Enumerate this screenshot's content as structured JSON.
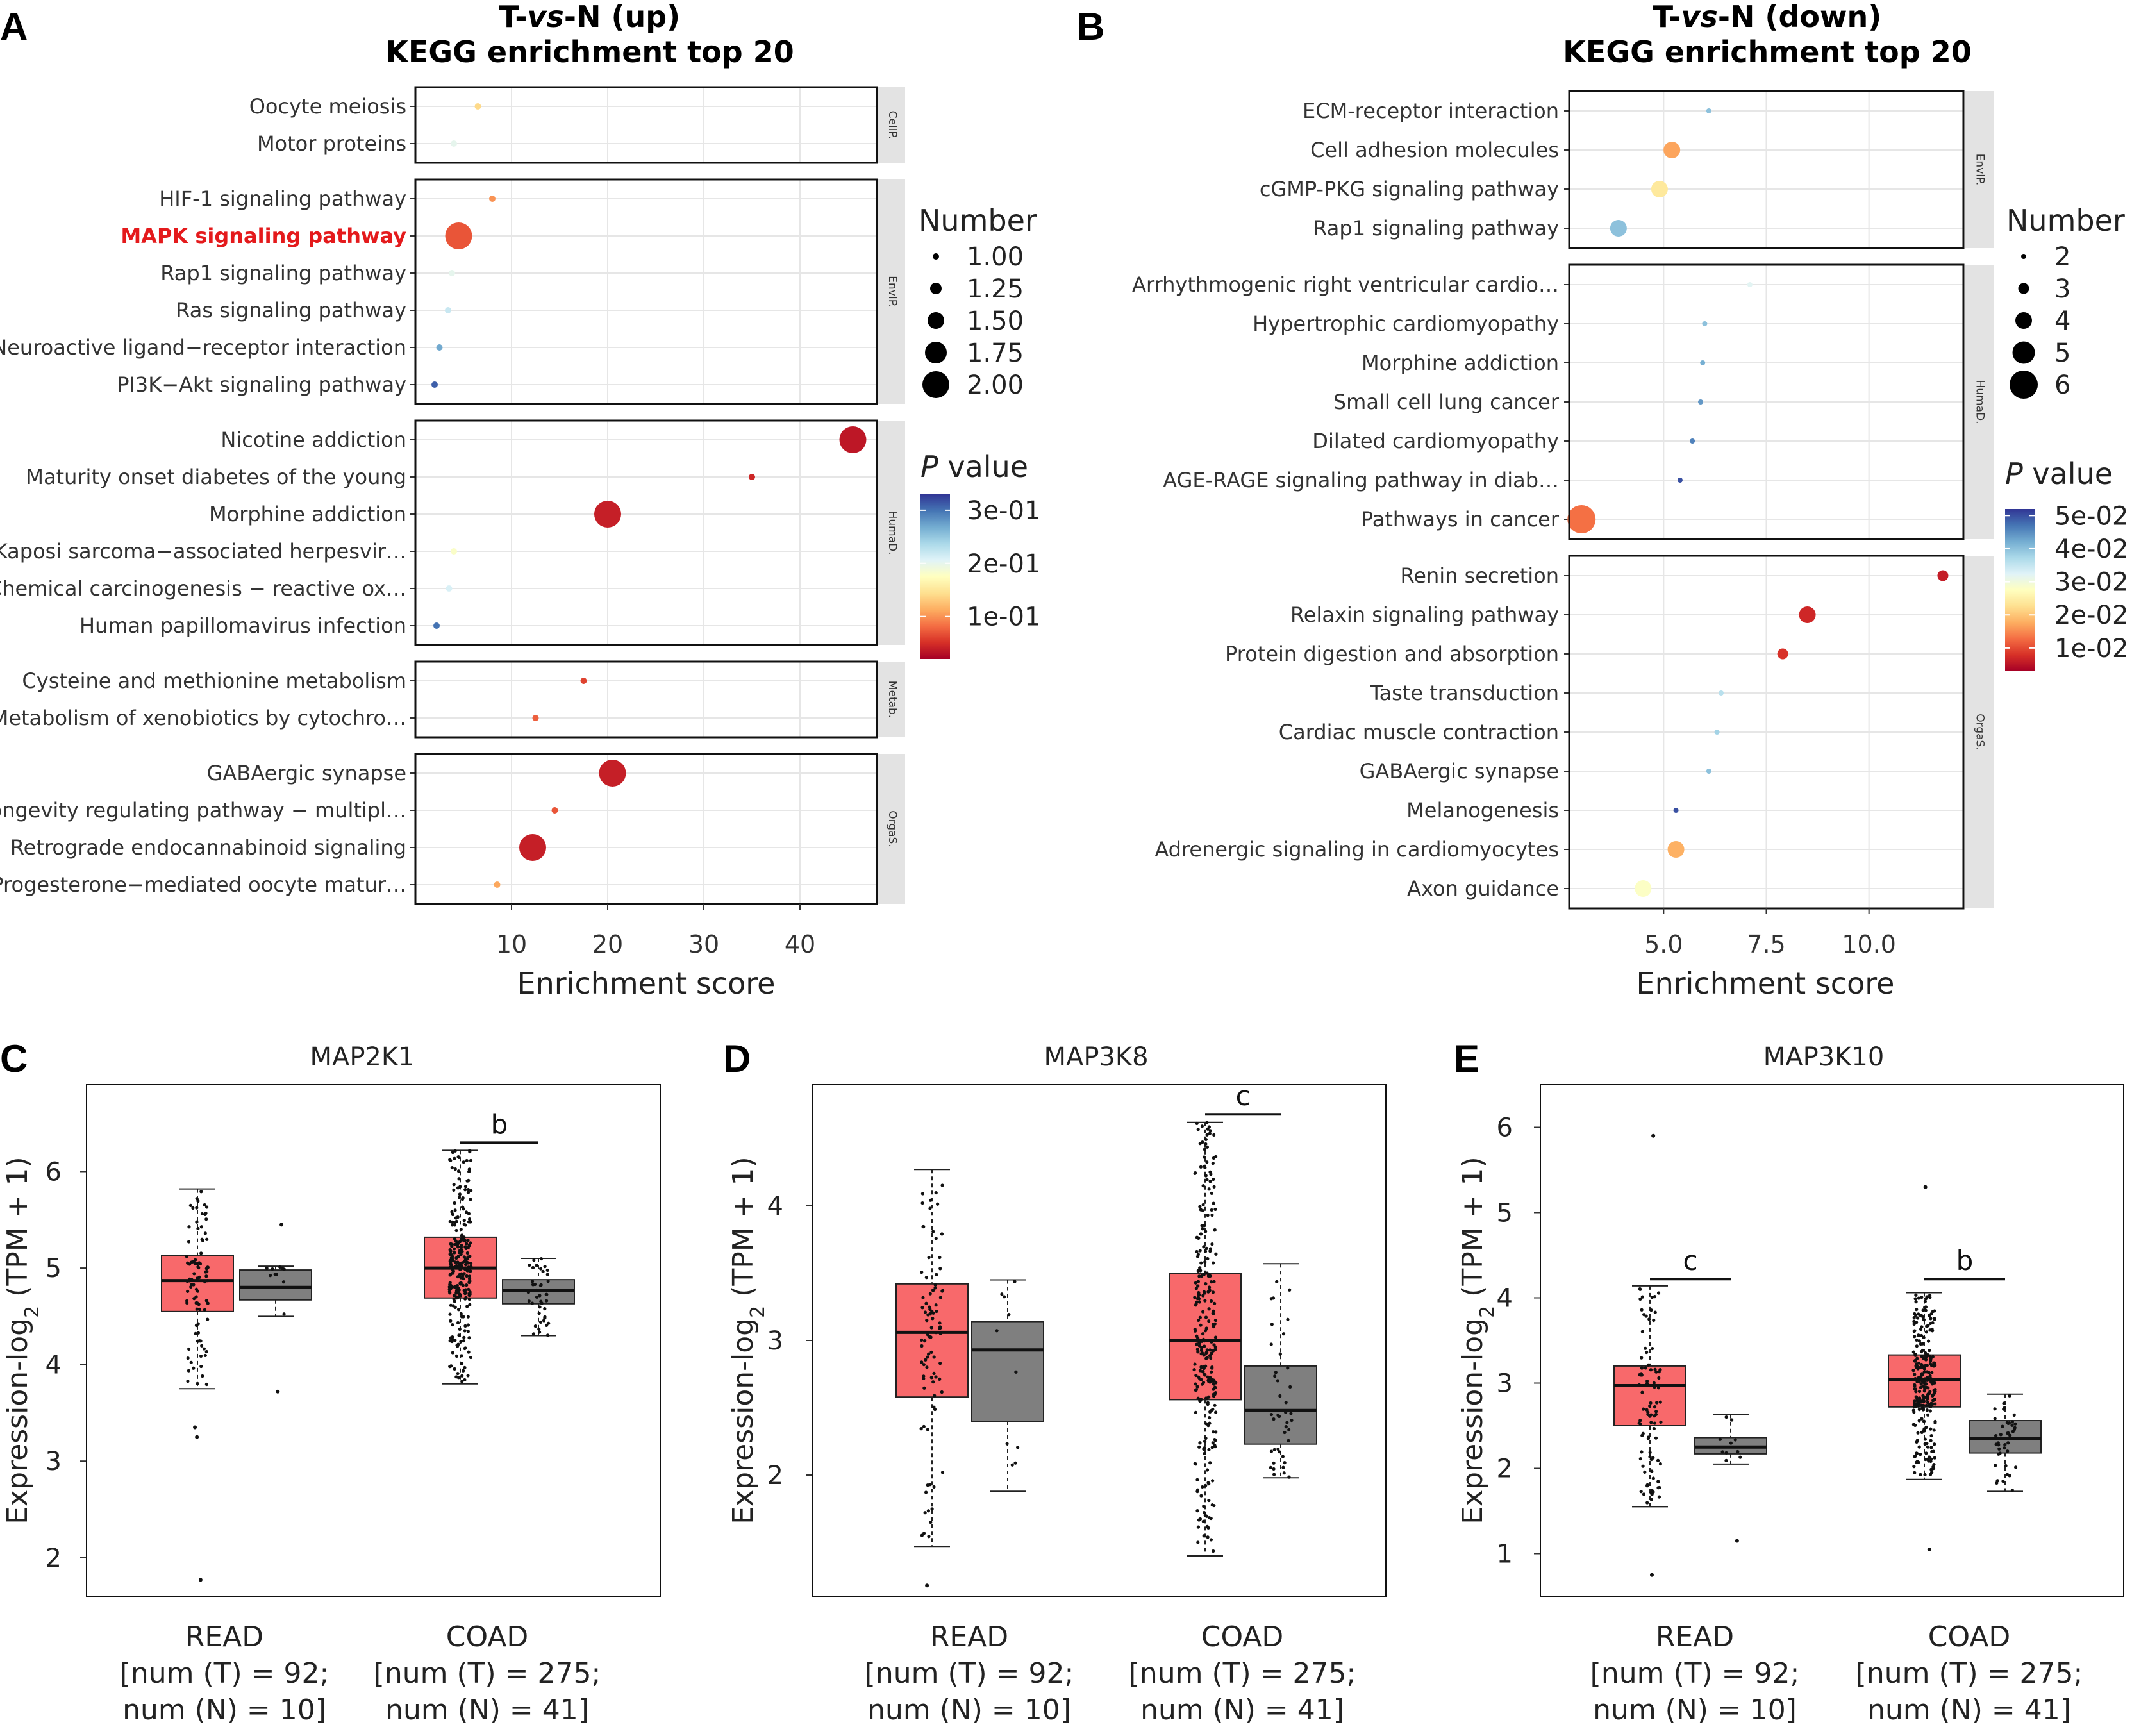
{
  "colors": {
    "tumor": "#f8696b",
    "normal": "#7f7f7f",
    "highlight": "#e41a1c",
    "strip": "#e3e3e3"
  },
  "colorbar_stops": [
    "#a50026",
    "#d73027",
    "#f46d43",
    "#fdae61",
    "#fee090",
    "#ffffbf",
    "#e0f3f8",
    "#abd9e9",
    "#74add1",
    "#4575b4",
    "#313695"
  ],
  "chart_data": [
    {
      "panel": "A",
      "type": "scatter",
      "title_parts": [
        "T-",
        "vs",
        "-N (up)"
      ],
      "subtitle": "KEGG enrichment top 20",
      "xlabel": "Enrichment score",
      "xlim": [
        0,
        48
      ],
      "xticks": [
        "10",
        "20",
        "30",
        "40"
      ],
      "xtick_values": [
        10,
        20,
        30,
        40
      ],
      "highlight_term": "MAPK signaling pathway",
      "size_legend": {
        "title": "Number",
        "labels": [
          "1.00",
          "1.25",
          "1.50",
          "1.75",
          "2.00"
        ],
        "values": [
          1,
          1.25,
          1.5,
          1.75,
          2
        ]
      },
      "p_legend": {
        "title_italic": "P",
        "title_rest": " value",
        "labels": [
          "3e-01",
          "2e-01",
          "1e-01"
        ],
        "values": [
          0.3,
          0.2,
          0.1
        ],
        "range": [
          0.02,
          0.33
        ]
      },
      "facets": [
        {
          "strip": "CellP.",
          "terms": [
            {
              "name": "Oocyte meiosis",
              "score": 6.5,
              "number": 1,
              "p": 0.14
            },
            {
              "name": "Motor proteins",
              "score": 4.0,
              "number": 1,
              "p": 0.2
            }
          ]
        },
        {
          "strip": "EnvIP.",
          "terms": [
            {
              "name": "HIF-1 signaling pathway",
              "score": 8.0,
              "number": 1,
              "p": 0.1
            },
            {
              "name": "MAPK signaling pathway",
              "score": 4.5,
              "number": 2,
              "p": 0.07
            },
            {
              "name": "Rap1 signaling pathway",
              "score": 3.8,
              "number": 1,
              "p": 0.2
            },
            {
              "name": "Ras signaling pathway",
              "score": 3.4,
              "number": 1,
              "p": 0.22
            },
            {
              "name": "Neuroactive ligand−receptor interaction",
              "score": 2.5,
              "number": 1,
              "p": 0.27
            },
            {
              "name": "PI3K−Akt signaling pathway",
              "score": 2.0,
              "number": 1,
              "p": 0.31
            }
          ]
        },
        {
          "strip": "HumaD.",
          "terms": [
            {
              "name": "Nicotine addiction",
              "score": 45.5,
              "number": 2,
              "p": 0.035
            },
            {
              "name": "Maturity onset diabetes of the young",
              "score": 35.0,
              "number": 1,
              "p": 0.045
            },
            {
              "name": "Morphine addiction",
              "score": 20.0,
              "number": 2,
              "p": 0.04
            },
            {
              "name": "Kaposi sarcoma−associated herpesvir…",
              "score": 4.0,
              "number": 1,
              "p": 0.18
            },
            {
              "name": "Chemical carcinogenesis − reactive ox…",
              "score": 3.5,
              "number": 1,
              "p": 0.21
            },
            {
              "name": "Human papillomavirus infection",
              "score": 2.2,
              "number": 1,
              "p": 0.3
            }
          ]
        },
        {
          "strip": "Metab.",
          "terms": [
            {
              "name": "Cysteine and methionine metabolism",
              "score": 17.5,
              "number": 1,
              "p": 0.06
            },
            {
              "name": "Metabolism of xenobiotics by cytochro…",
              "score": 12.5,
              "number": 1,
              "p": 0.075
            }
          ]
        },
        {
          "strip": "OrgaS.",
          "terms": [
            {
              "name": "GABAergic synapse",
              "score": 20.5,
              "number": 2,
              "p": 0.04
            },
            {
              "name": "Longevity regulating pathway − multipl…",
              "score": 14.5,
              "number": 1,
              "p": 0.07
            },
            {
              "name": "Retrograde endocannabinoid signaling",
              "score": 12.2,
              "number": 2,
              "p": 0.04
            },
            {
              "name": "Progesterone−mediated oocyte matur…",
              "score": 8.5,
              "number": 1,
              "p": 0.11
            }
          ]
        }
      ]
    },
    {
      "panel": "B",
      "type": "scatter",
      "title_parts": [
        "T-",
        "vs",
        "-N (down)"
      ],
      "subtitle": "KEGG enrichment top 20",
      "xlabel": "Enrichment score",
      "xlim": [
        2.7,
        12.3
      ],
      "xticks": [
        "5.0",
        "7.5",
        "10.0"
      ],
      "xtick_values": [
        5.0,
        7.5,
        10.0
      ],
      "size_legend": {
        "title": "Number",
        "labels": [
          "2",
          "3",
          "4",
          "5",
          "6"
        ],
        "values": [
          2,
          3,
          4,
          5,
          6
        ]
      },
      "p_legend": {
        "title_italic": "P",
        "title_rest": " value",
        "labels": [
          "5e-02",
          "4e-02",
          "3e-02",
          "2e-02",
          "1e-02"
        ],
        "values": [
          0.05,
          0.04,
          0.03,
          0.02,
          0.01
        ],
        "range": [
          0.003,
          0.052
        ]
      },
      "facets": [
        {
          "strip": "EnvIP.",
          "terms": [
            {
              "name": "ECM-receptor interaction",
              "score": 6.1,
              "number": 2,
              "p": 0.04
            },
            {
              "name": "Cell adhesion molecules",
              "score": 5.2,
              "number": 4,
              "p": 0.017
            },
            {
              "name": "cGMP-PKG signaling pathway",
              "score": 4.9,
              "number": 4,
              "p": 0.024
            },
            {
              "name": "Rap1 signaling pathway",
              "score": 3.9,
              "number": 4,
              "p": 0.04
            }
          ]
        },
        {
          "strip": "HumaD.",
          "terms": [
            {
              "name": "Arrhythmogenic right ventricular cardio…",
              "score": 7.1,
              "number": 2,
              "p": 0.032
            },
            {
              "name": "Hypertrophic cardiomyopathy",
              "score": 6.0,
              "number": 2,
              "p": 0.04
            },
            {
              "name": "Morphine addiction",
              "score": 5.95,
              "number": 2,
              "p": 0.042
            },
            {
              "name": "Small cell lung cancer",
              "score": 5.9,
              "number": 2,
              "p": 0.044
            },
            {
              "name": "Dilated cardiomyopathy",
              "score": 5.7,
              "number": 2,
              "p": 0.046
            },
            {
              "name": "AGE-RAGE signaling pathway in diab…",
              "score": 5.4,
              "number": 2,
              "p": 0.05
            },
            {
              "name": "Pathways in cancer",
              "score": 3.0,
              "number": 6,
              "p": 0.013
            }
          ]
        },
        {
          "strip": "OrgaS.",
          "terms": [
            {
              "name": "Renin secretion",
              "score": 11.8,
              "number": 3,
              "p": 0.006
            },
            {
              "name": "Relaxin signaling pathway",
              "score": 8.5,
              "number": 4,
              "p": 0.007
            },
            {
              "name": "Protein digestion and absorption",
              "score": 7.9,
              "number": 3,
              "p": 0.008
            },
            {
              "name": "Taste transduction",
              "score": 6.4,
              "number": 2,
              "p": 0.036
            },
            {
              "name": "Cardiac muscle contraction",
              "score": 6.3,
              "number": 2,
              "p": 0.038
            },
            {
              "name": "GABAergic synapse",
              "score": 6.1,
              "number": 2,
              "p": 0.04
            },
            {
              "name": "Melanogenesis",
              "score": 5.3,
              "number": 2,
              "p": 0.05
            },
            {
              "name": "Adrenergic signaling in cardiomyocytes",
              "score": 5.3,
              "number": 4,
              "p": 0.018
            },
            {
              "name": "Axon guidance",
              "score": 4.5,
              "number": 4,
              "p": 0.028
            }
          ]
        }
      ]
    },
    {
      "panel": "C",
      "type": "box",
      "title": "MAP2K1",
      "ylabel_parts": [
        "Expression-log",
        "2",
        " (TPM + 1)"
      ],
      "ylim": [
        1.6,
        6.9
      ],
      "yticks": [
        2,
        3,
        4,
        5,
        6
      ],
      "categories": [
        {
          "name": "READ",
          "lines": [
            "READ",
            "[num (T) = 92;",
            "num (N) = 10]"
          ]
        },
        {
          "name": "COAD",
          "lines": [
            "COAD",
            "[num (T) = 275;",
            "num (N) = 41]"
          ]
        }
      ],
      "boxes": [
        {
          "group": "READ",
          "series": "T",
          "q1": 4.55,
          "median": 4.87,
          "q3": 5.13,
          "whisker_low": 3.75,
          "whisker_high": 5.82,
          "n": 92,
          "outliers": [
            3.25,
            3.35,
            1.77
          ]
        },
        {
          "group": "READ",
          "series": "N",
          "q1": 4.67,
          "median": 4.8,
          "q3": 4.98,
          "whisker_low": 4.5,
          "whisker_high": 5.02,
          "n": 10,
          "outliers": [
            5.45,
            3.72
          ]
        },
        {
          "group": "COAD",
          "series": "T",
          "q1": 4.69,
          "median": 5.0,
          "q3": 5.32,
          "whisker_low": 3.8,
          "whisker_high": 6.22,
          "n": 275,
          "outliers": []
        },
        {
          "group": "COAD",
          "series": "N",
          "q1": 4.63,
          "median": 4.77,
          "q3": 4.88,
          "whisker_low": 4.3,
          "whisker_high": 5.1,
          "n": 41,
          "outliers": []
        }
      ],
      "significance": [
        {
          "group": "COAD",
          "label": "b",
          "y": 6.3
        }
      ]
    },
    {
      "panel": "D",
      "type": "box",
      "title": "MAP3K8",
      "ylabel_parts": [
        "Expression-log",
        "2",
        " (TPM + 1)"
      ],
      "ylim": [
        1.1,
        4.9
      ],
      "yticks": [
        2,
        3,
        4
      ],
      "categories": [
        {
          "name": "READ",
          "lines": [
            "READ",
            "[num (T) = 92;",
            "num (N) = 10]"
          ]
        },
        {
          "name": "COAD",
          "lines": [
            "COAD",
            "[num (T) = 275;",
            "num (N) = 41]"
          ]
        }
      ],
      "boxes": [
        {
          "group": "READ",
          "series": "T",
          "q1": 2.58,
          "median": 3.06,
          "q3": 3.42,
          "whisker_low": 1.47,
          "whisker_high": 4.27,
          "n": 92,
          "outliers": [
            1.18
          ]
        },
        {
          "group": "READ",
          "series": "N",
          "q1": 2.4,
          "median": 2.93,
          "q3": 3.14,
          "whisker_low": 1.88,
          "whisker_high": 3.45,
          "n": 10,
          "outliers": []
        },
        {
          "group": "COAD",
          "series": "T",
          "q1": 2.56,
          "median": 3.0,
          "q3": 3.5,
          "whisker_low": 1.4,
          "whisker_high": 4.62,
          "n": 275,
          "outliers": []
        },
        {
          "group": "COAD",
          "series": "N",
          "q1": 2.23,
          "median": 2.48,
          "q3": 2.81,
          "whisker_low": 1.98,
          "whisker_high": 3.57,
          "n": 41,
          "outliers": []
        }
      ],
      "significance": [
        {
          "group": "COAD",
          "label": "c",
          "y": 4.68
        }
      ]
    },
    {
      "panel": "E",
      "type": "box",
      "title": "MAP3K10",
      "ylabel_parts": [
        "Expression-log",
        "2",
        " (TPM + 1)"
      ],
      "ylim": [
        0.5,
        6.5
      ],
      "yticks": [
        1,
        2,
        3,
        4,
        5,
        6
      ],
      "categories": [
        {
          "name": "READ",
          "lines": [
            "READ",
            "[num (T) = 92;",
            "num (N) = 10]"
          ]
        },
        {
          "name": "COAD",
          "lines": [
            "COAD",
            "[num (T) = 275;",
            "num (N) = 41]"
          ]
        }
      ],
      "boxes": [
        {
          "group": "READ",
          "series": "T",
          "q1": 2.5,
          "median": 2.97,
          "q3": 3.2,
          "whisker_low": 1.55,
          "whisker_high": 4.14,
          "n": 92,
          "outliers": [
            5.9,
            0.75
          ]
        },
        {
          "group": "READ",
          "series": "N",
          "q1": 2.17,
          "median": 2.25,
          "q3": 2.36,
          "whisker_low": 2.05,
          "whisker_high": 2.63,
          "n": 10,
          "outliers": [
            1.15
          ]
        },
        {
          "group": "COAD",
          "series": "T",
          "q1": 2.72,
          "median": 3.04,
          "q3": 3.33,
          "whisker_low": 1.87,
          "whisker_high": 4.06,
          "n": 275,
          "outliers": [
            5.3,
            1.05
          ]
        },
        {
          "group": "COAD",
          "series": "N",
          "q1": 2.18,
          "median": 2.35,
          "q3": 2.56,
          "whisker_low": 1.73,
          "whisker_high": 2.87,
          "n": 41,
          "outliers": []
        }
      ],
      "significance": [
        {
          "group": "READ",
          "label": "c",
          "y": 4.22
        },
        {
          "group": "COAD",
          "label": "b",
          "y": 4.22
        }
      ]
    }
  ]
}
